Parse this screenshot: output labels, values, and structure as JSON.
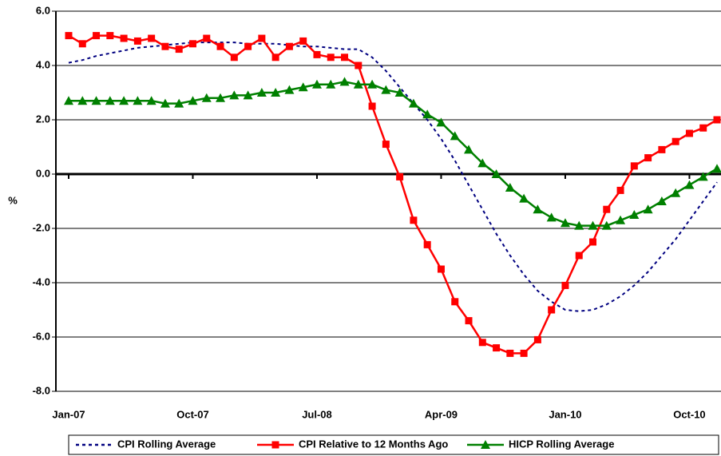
{
  "chart_data": {
    "type": "line",
    "ylabel": "%",
    "categories": [
      "Jan-07",
      null,
      null,
      null,
      null,
      null,
      null,
      null,
      null,
      "Oct-07",
      null,
      null,
      null,
      null,
      null,
      null,
      null,
      null,
      "Jul-08",
      null,
      null,
      null,
      null,
      null,
      null,
      null,
      null,
      "Apr-09",
      null,
      null,
      null,
      null,
      null,
      null,
      null,
      null,
      "Jan-10",
      null,
      null,
      null,
      null,
      null,
      null,
      null,
      null,
      "Oct-10",
      null,
      null
    ],
    "ylim": [
      -8,
      6
    ],
    "yticks": [
      {
        "value": -8,
        "label": "-8.0"
      },
      {
        "value": -6,
        "label": "-6.0"
      },
      {
        "value": -4,
        "label": "-4.0"
      },
      {
        "value": -2,
        "label": "-2.0"
      },
      {
        "value": 0,
        "label": "0.0"
      },
      {
        "value": 2,
        "label": "2.0"
      },
      {
        "value": 4,
        "label": "4.0"
      },
      {
        "value": 6,
        "label": "6.0"
      }
    ],
    "grid": true,
    "legend": "bottom",
    "series": [
      {
        "name": "CPI Rolling Average",
        "color": "#000080",
        "style": "dashed",
        "marker": "none",
        "values": [
          4.1,
          4.2,
          4.35,
          4.45,
          4.55,
          4.65,
          4.7,
          4.75,
          4.8,
          4.85,
          4.85,
          4.85,
          4.85,
          4.8,
          4.8,
          4.8,
          4.75,
          4.7,
          4.7,
          4.65,
          4.6,
          4.6,
          4.3,
          3.8,
          3.2,
          2.6,
          2.0,
          1.3,
          0.5,
          -0.4,
          -1.3,
          -2.2,
          -3.0,
          -3.7,
          -4.3,
          -4.7,
          -5.0,
          -5.05,
          -5.0,
          -4.8,
          -4.5,
          -4.1,
          -3.6,
          -3.0,
          -2.4,
          -1.7,
          -1.0,
          -0.3
        ]
      },
      {
        "name": "CPI Relative to 12 Months Ago",
        "color": "#ff0000",
        "style": "solid",
        "marker": "square",
        "values": [
          5.1,
          4.8,
          5.1,
          5.1,
          5.0,
          4.9,
          5.0,
          4.7,
          4.6,
          4.8,
          5.0,
          4.7,
          4.3,
          4.7,
          5.0,
          4.3,
          4.7,
          4.9,
          4.4,
          4.3,
          4.3,
          4.0,
          2.5,
          1.1,
          -0.1,
          -1.7,
          -2.6,
          -3.5,
          -4.7,
          -5.4,
          -6.2,
          -6.4,
          -6.6,
          -6.6,
          -6.1,
          -5.0,
          -4.1,
          -3.0,
          -2.5,
          -1.3,
          -0.6,
          0.3,
          0.6,
          0.9,
          1.2,
          1.5,
          1.7,
          2.0
        ]
      },
      {
        "name": "HICP Rolling Average",
        "color": "#008000",
        "style": "solid",
        "marker": "triangle",
        "values": [
          2.7,
          2.7,
          2.7,
          2.7,
          2.7,
          2.7,
          2.7,
          2.6,
          2.6,
          2.7,
          2.8,
          2.8,
          2.9,
          2.9,
          3.0,
          3.0,
          3.1,
          3.2,
          3.3,
          3.3,
          3.4,
          3.3,
          3.3,
          3.1,
          3.0,
          2.6,
          2.2,
          1.9,
          1.4,
          0.9,
          0.4,
          0.0,
          -0.5,
          -0.9,
          -1.3,
          -1.6,
          -1.8,
          -1.9,
          -1.9,
          -1.9,
          -1.7,
          -1.5,
          -1.3,
          -1.0,
          -0.7,
          -0.4,
          -0.1,
          0.2
        ]
      }
    ]
  }
}
